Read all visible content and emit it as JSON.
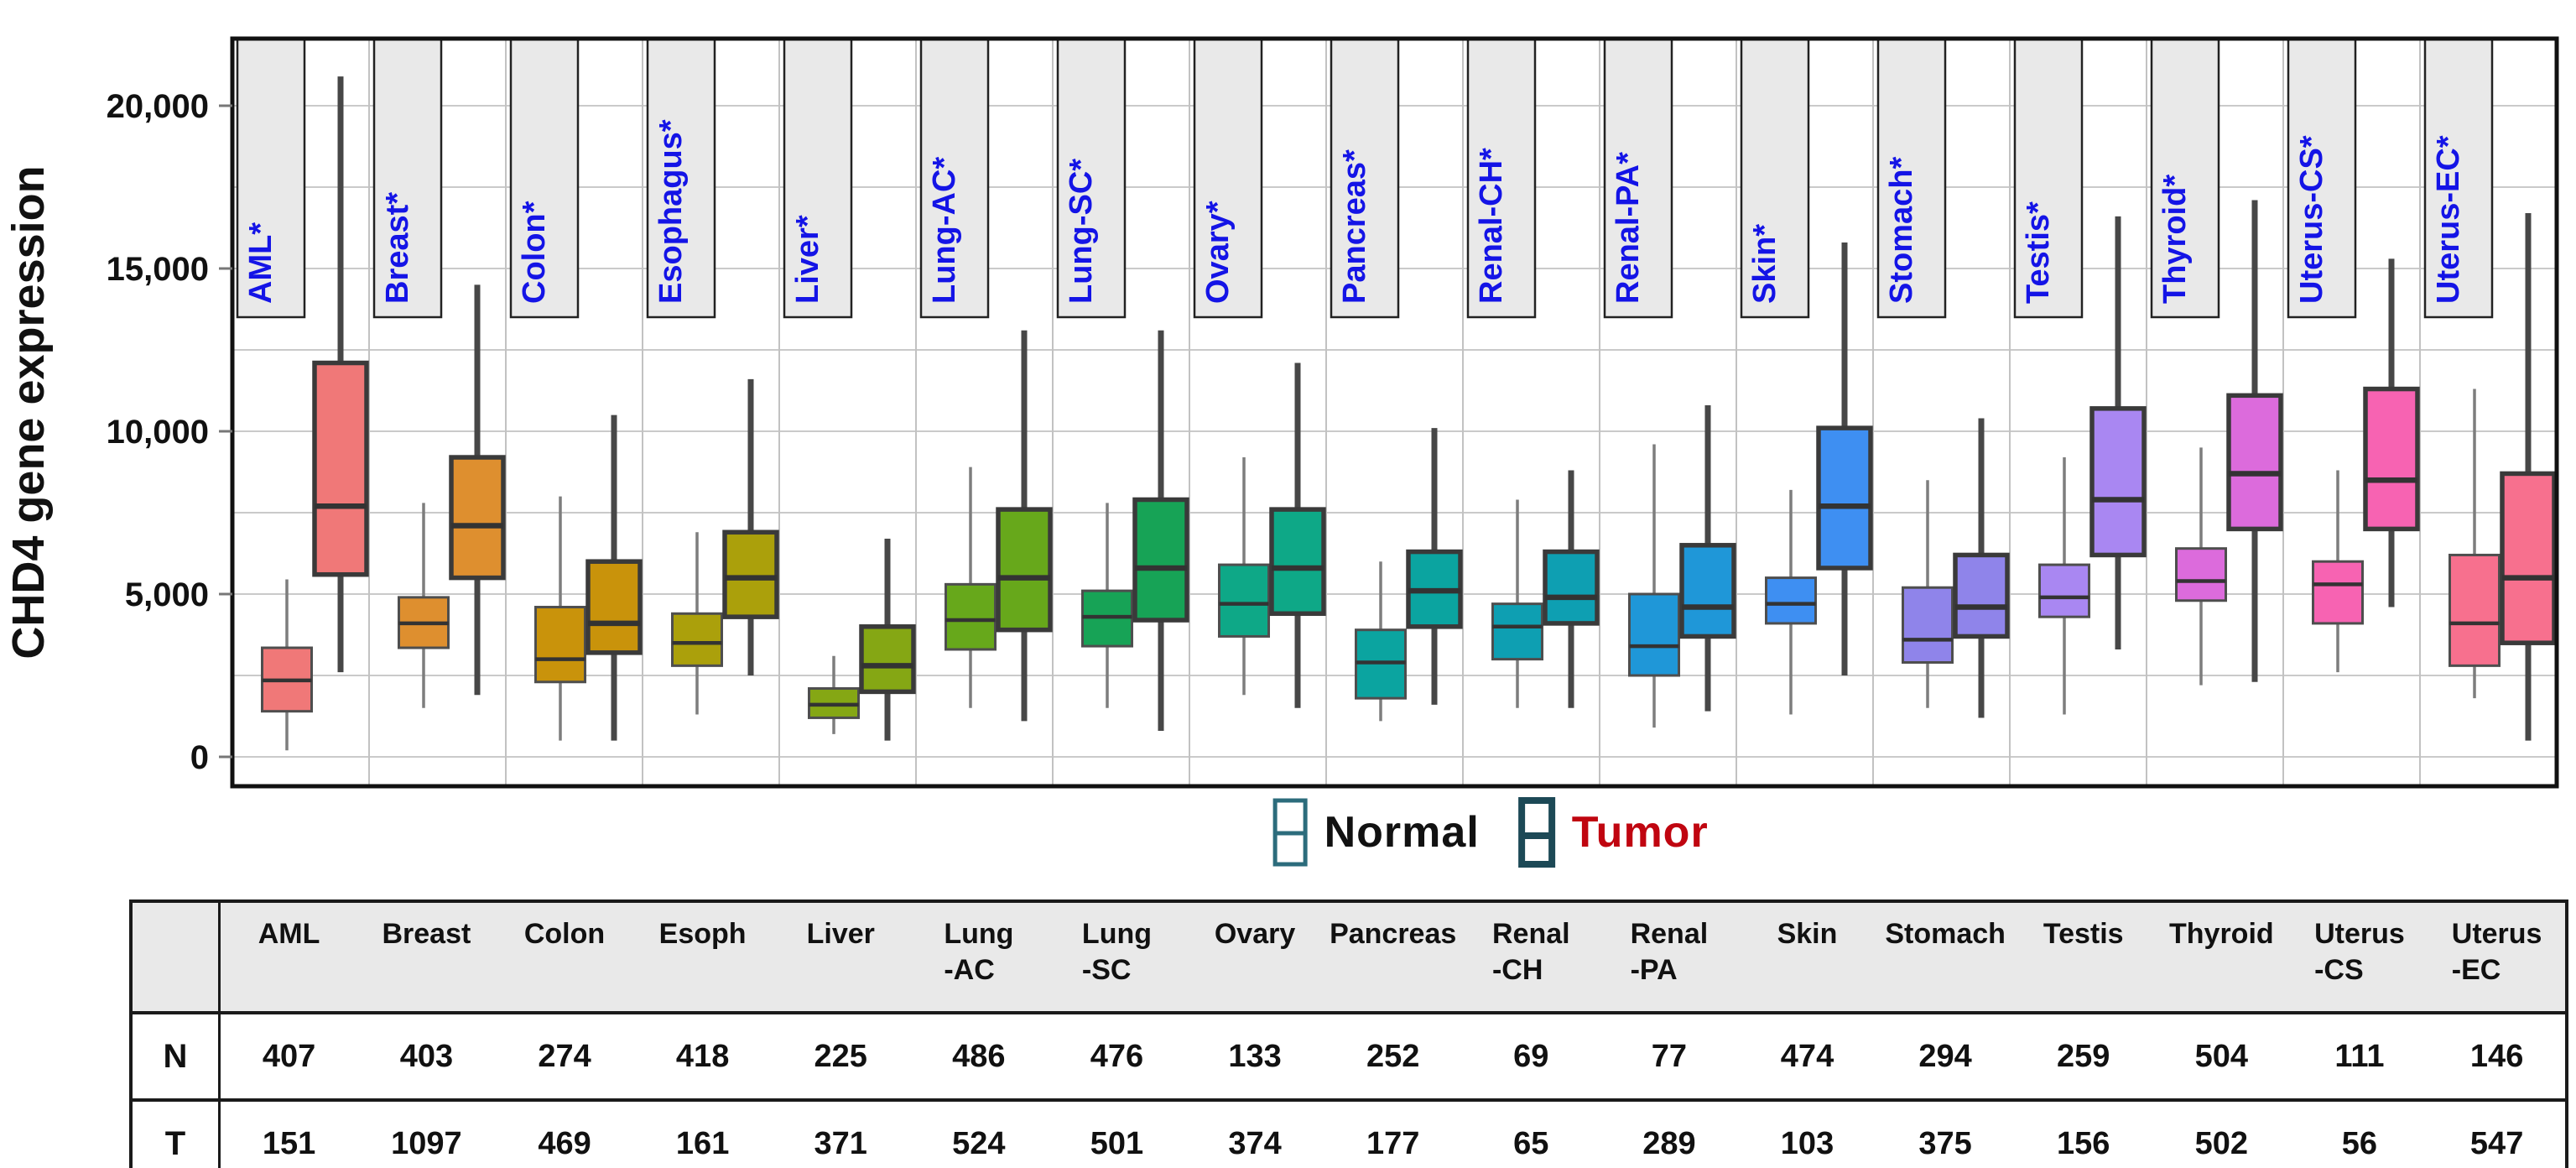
{
  "figure": {
    "y_axis_title": "CHD4 gene expression",
    "legend": {
      "normal_label": "Normal",
      "tumor_label": "Tumor",
      "normal_text_color": "#111111",
      "tumor_text_color": "#c00510",
      "normal_glyph_border": "#2c6c7c",
      "tumor_glyph_border": "#1c4956"
    },
    "colors": {
      "category_label_text": "#1414e6",
      "category_label_box_fill": "#e9e9e9",
      "gridline": "#cacaca",
      "slot_separator": "#c2c2c2",
      "plot_border": "#111111",
      "normal_box_border": "#4e4e4e",
      "tumor_box_border": "#3a3a3a",
      "normal_whisker": "#7d7d7d",
      "tumor_whisker": "#474747",
      "median_line": "#333333"
    }
  },
  "chart_data": {
    "type": "boxplot",
    "title": "",
    "ylabel": "CHD4 gene expression",
    "xlabel": "",
    "ylim": [
      -900,
      22100
    ],
    "grid": true,
    "gridline_step": 2500,
    "legend_position": "bottom",
    "series": [
      "Normal",
      "Tumor"
    ],
    "y_ticks": [
      {
        "value": 0,
        "label": "0"
      },
      {
        "value": 5000,
        "label": "5,000"
      },
      {
        "value": 10000,
        "label": "10,000"
      },
      {
        "value": 15000,
        "label": "15,000"
      },
      {
        "value": 20000,
        "label": "20,000"
      }
    ],
    "box_values_order": [
      "whisker_low",
      "q1",
      "median",
      "q3",
      "whisker_high"
    ],
    "categories": [
      {
        "label": "AML*",
        "color": "#f07878",
        "normal": [
          200,
          1400,
          2350,
          3350,
          5450
        ],
        "tumor": [
          2600,
          5600,
          7700,
          12100,
          20900
        ]
      },
      {
        "label": "Breast*",
        "color": "#de8f2f",
        "normal": [
          1500,
          3350,
          4100,
          4900,
          7800
        ],
        "tumor": [
          1900,
          5500,
          7100,
          9200,
          14500
        ]
      },
      {
        "label": "Colon*",
        "color": "#c9930b",
        "normal": [
          500,
          2300,
          3000,
          4600,
          8000
        ],
        "tumor": [
          500,
          3200,
          4100,
          6000,
          10500
        ]
      },
      {
        "label": "Esophagus*",
        "color": "#aba00b",
        "normal": [
          1300,
          2800,
          3500,
          4400,
          6900
        ],
        "tumor": [
          2500,
          4300,
          5500,
          6900,
          11600
        ]
      },
      {
        "label": "Liver*",
        "color": "#85a714",
        "normal": [
          700,
          1200,
          1600,
          2100,
          3100
        ],
        "tumor": [
          500,
          2000,
          2800,
          4000,
          6700
        ]
      },
      {
        "label": "Lung-AC*",
        "color": "#67a81b",
        "normal": [
          1500,
          3300,
          4200,
          5300,
          8900
        ],
        "tumor": [
          1100,
          3900,
          5500,
          7600,
          13100
        ]
      },
      {
        "label": "Lung-SC*",
        "color": "#17a356",
        "normal": [
          1500,
          3400,
          4300,
          5100,
          7800
        ],
        "tumor": [
          800,
          4200,
          5800,
          7900,
          13100
        ]
      },
      {
        "label": "Ovary*",
        "color": "#0ea887",
        "normal": [
          1900,
          3700,
          4700,
          5900,
          9200
        ],
        "tumor": [
          1500,
          4400,
          5800,
          7600,
          12100
        ]
      },
      {
        "label": "Pancreas*",
        "color": "#0ba4a0",
        "normal": [
          1100,
          1800,
          2900,
          3900,
          6000
        ],
        "tumor": [
          1600,
          4000,
          5100,
          6300,
          10100
        ]
      },
      {
        "label": "Renal-CH*",
        "color": "#0e9fb2",
        "normal": [
          1500,
          3000,
          4000,
          4700,
          7900
        ],
        "tumor": [
          1500,
          4100,
          4900,
          6300,
          8800
        ]
      },
      {
        "label": "Renal-PA*",
        "color": "#1f97d8",
        "normal": [
          900,
          2500,
          3400,
          5000,
          9600
        ],
        "tumor": [
          1400,
          3700,
          4600,
          6500,
          10800
        ]
      },
      {
        "label": "Skin*",
        "color": "#3e8ff2",
        "normal": [
          1300,
          4100,
          4700,
          5500,
          8200
        ],
        "tumor": [
          2500,
          5800,
          7700,
          10100,
          15800
        ]
      },
      {
        "label": "Stomach*",
        "color": "#8f84ea",
        "normal": [
          1500,
          2900,
          3600,
          5200,
          8500
        ],
        "tumor": [
          1200,
          3700,
          4600,
          6200,
          10400
        ]
      },
      {
        "label": "Testis*",
        "color": "#a987f2",
        "normal": [
          1300,
          4300,
          4900,
          5900,
          9200
        ],
        "tumor": [
          3300,
          6200,
          7900,
          10700,
          16600
        ]
      },
      {
        "label": "Thyroid*",
        "color": "#dc6bdc",
        "normal": [
          2200,
          4800,
          5400,
          6400,
          9500
        ],
        "tumor": [
          2300,
          7000,
          8700,
          11100,
          17100
        ]
      },
      {
        "label": "Uterus-CS*",
        "color": "#f763b2",
        "normal": [
          2600,
          4100,
          5300,
          6000,
          8800
        ],
        "tumor": [
          4600,
          7000,
          8500,
          11300,
          15300
        ]
      },
      {
        "label": "Uterus-EC*",
        "color": "#f7708e",
        "normal": [
          1800,
          2800,
          4100,
          6200,
          11300
        ],
        "tumor": [
          500,
          3500,
          5500,
          8700,
          16700
        ]
      }
    ]
  },
  "table": {
    "corner_label": "",
    "columns": [
      "AML",
      "Breast",
      "Colon",
      "Esoph",
      "Liver",
      "Lung\n-AC",
      "Lung\n-SC",
      "Ovary",
      "Pancreas",
      "Renal\n-CH",
      "Renal\n-PA",
      "Skin",
      "Stomach",
      "Testis",
      "Thyroid",
      "Uterus\n-CS",
      "Uterus\n-EC"
    ],
    "rows": [
      {
        "label": "N",
        "values": [
          407,
          403,
          274,
          418,
          225,
          486,
          476,
          133,
          252,
          69,
          77,
          474,
          294,
          259,
          504,
          111,
          146
        ]
      },
      {
        "label": "T",
        "values": [
          151,
          1097,
          469,
          161,
          371,
          524,
          501,
          374,
          177,
          65,
          289,
          103,
          375,
          156,
          502,
          56,
          547
        ]
      }
    ]
  }
}
